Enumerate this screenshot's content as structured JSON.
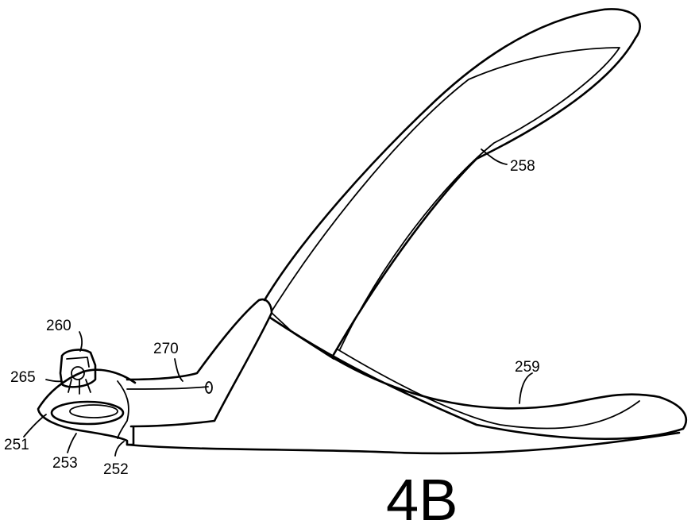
{
  "figure": {
    "label": "4B",
    "refs": {
      "r258": "258",
      "r259": "259",
      "r260": "260",
      "r265": "265",
      "r270": "270",
      "r251": "251",
      "r253": "253",
      "r252": "252"
    }
  }
}
